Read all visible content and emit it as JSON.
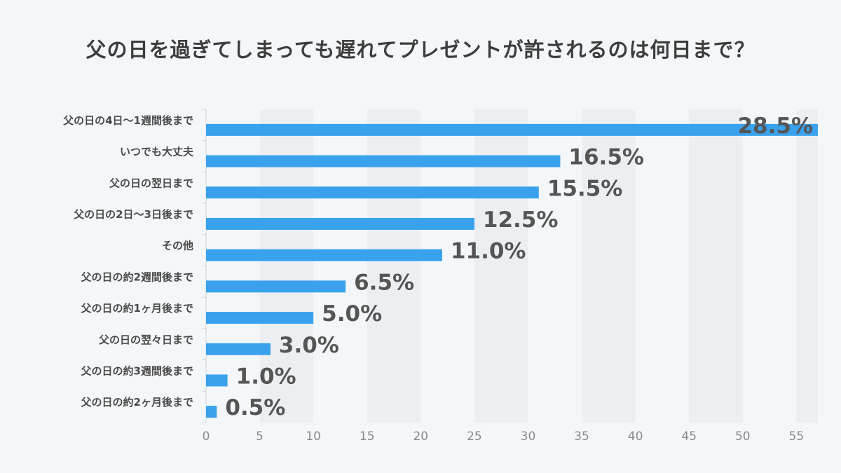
{
  "title": "父の日を過ぎてしまっても遅れてプレゼントが許されるのは何日まで？",
  "colors": {
    "bar": "#3aa2ec",
    "band": "#eceff2",
    "background": "#f4f7f9",
    "axis": "#d0d4d8"
  },
  "chart_data": {
    "type": "bar",
    "orientation": "horizontal",
    "title": "父の日を過ぎてしまっても遅れてプレゼントが許されるのは何日まで？",
    "categories": [
      "父の日の4日～1週間後まで",
      "いつでも大丈夫",
      "父の日の翌日まで",
      "父の日の2日～3日後まで",
      "その他",
      "父の日の約2週間後まで",
      "父の日の約1ヶ月後まで",
      "父の日の翌々日まで",
      "父の日の約3週間後まで",
      "父の日の約2ヶ月後まで"
    ],
    "values": [
      57,
      33,
      31,
      25,
      22,
      13,
      10,
      6,
      2,
      1
    ],
    "data_labels": [
      "28.5%",
      "16.5%",
      "15.5%",
      "12.5%",
      "11.0%",
      "6.5%",
      "5.0%",
      "3.0%",
      "1.0%",
      "0.5%"
    ],
    "xlim": [
      0,
      57
    ],
    "xticks": [
      0,
      5,
      10,
      15,
      20,
      25,
      30,
      35,
      40,
      45,
      50,
      55
    ],
    "xlabel": "",
    "ylabel": "",
    "grid": "alternating vertical bands"
  }
}
